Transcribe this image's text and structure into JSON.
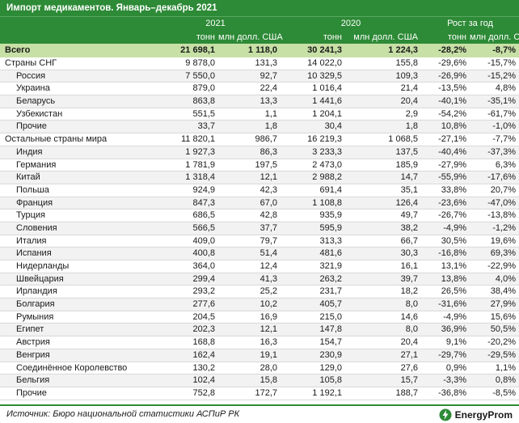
{
  "title": "Импорт медикаментов. Январь–декабрь 2021",
  "years": {
    "y2021": "2021",
    "y2020": "2020",
    "growth": "Рост за год"
  },
  "units": {
    "tons": "тонн",
    "usd": "млн долл. США"
  },
  "total": {
    "name": "Всего",
    "t21": "21 698,1",
    "u21": "1 118,0",
    "t20": "30 241,3",
    "u20": "1 224,3",
    "gt": "-28,2%",
    "gu": "-8,7%"
  },
  "rows": [
    {
      "name": "Страны СНГ",
      "sub": false,
      "t21": "9 878,0",
      "u21": "131,3",
      "t20": "14 022,0",
      "u20": "155,8",
      "gt": "-29,6%",
      "gu": "-15,7%"
    },
    {
      "name": "Россия",
      "sub": true,
      "t21": "7 550,0",
      "u21": "92,7",
      "t20": "10 329,5",
      "u20": "109,3",
      "gt": "-26,9%",
      "gu": "-15,2%"
    },
    {
      "name": "Украина",
      "sub": true,
      "t21": "879,0",
      "u21": "22,4",
      "t20": "1 016,4",
      "u20": "21,4",
      "gt": "-13,5%",
      "gu": "4,8%"
    },
    {
      "name": "Беларусь",
      "sub": true,
      "t21": "863,8",
      "u21": "13,3",
      "t20": "1 441,6",
      "u20": "20,4",
      "gt": "-40,1%",
      "gu": "-35,1%"
    },
    {
      "name": "Узбекистан",
      "sub": true,
      "t21": "551,5",
      "u21": "1,1",
      "t20": "1 204,1",
      "u20": "2,9",
      "gt": "-54,2%",
      "gu": "-61,7%"
    },
    {
      "name": "Прочие",
      "sub": true,
      "t21": "33,7",
      "u21": "1,8",
      "t20": "30,4",
      "u20": "1,8",
      "gt": "10,8%",
      "gu": "-1,0%"
    },
    {
      "name": "Остальные страны мира",
      "sub": false,
      "t21": "11 820,1",
      "u21": "986,7",
      "t20": "16 219,3",
      "u20": "1 068,5",
      "gt": "-27,1%",
      "gu": "-7,7%"
    },
    {
      "name": "Индия",
      "sub": true,
      "t21": "1 927,3",
      "u21": "86,3",
      "t20": "3 233,3",
      "u20": "137,5",
      "gt": "-40,4%",
      "gu": "-37,3%"
    },
    {
      "name": "Германия",
      "sub": true,
      "t21": "1 781,9",
      "u21": "197,5",
      "t20": "2 473,0",
      "u20": "185,9",
      "gt": "-27,9%",
      "gu": "6,3%"
    },
    {
      "name": "Китай",
      "sub": true,
      "t21": "1 318,4",
      "u21": "12,1",
      "t20": "2 988,2",
      "u20": "14,7",
      "gt": "-55,9%",
      "gu": "-17,6%"
    },
    {
      "name": "Польша",
      "sub": true,
      "t21": "924,9",
      "u21": "42,3",
      "t20": "691,4",
      "u20": "35,1",
      "gt": "33,8%",
      "gu": "20,7%"
    },
    {
      "name": "Франция",
      "sub": true,
      "t21": "847,3",
      "u21": "67,0",
      "t20": "1 108,8",
      "u20": "126,4",
      "gt": "-23,6%",
      "gu": "-47,0%"
    },
    {
      "name": "Турция",
      "sub": true,
      "t21": "686,5",
      "u21": "42,8",
      "t20": "935,9",
      "u20": "49,7",
      "gt": "-26,7%",
      "gu": "-13,8%"
    },
    {
      "name": "Словения",
      "sub": true,
      "t21": "566,5",
      "u21": "37,7",
      "t20": "595,9",
      "u20": "38,2",
      "gt": "-4,9%",
      "gu": "-1,2%"
    },
    {
      "name": "Италия",
      "sub": true,
      "t21": "409,0",
      "u21": "79,7",
      "t20": "313,3",
      "u20": "66,7",
      "gt": "30,5%",
      "gu": "19,6%"
    },
    {
      "name": "Испания",
      "sub": true,
      "t21": "400,8",
      "u21": "51,4",
      "t20": "481,6",
      "u20": "30,3",
      "gt": "-16,8%",
      "gu": "69,3%"
    },
    {
      "name": "Нидерланды",
      "sub": true,
      "t21": "364,0",
      "u21": "12,4",
      "t20": "321,9",
      "u20": "16,1",
      "gt": "13,1%",
      "gu": "-22,9%"
    },
    {
      "name": "Швейцария",
      "sub": true,
      "t21": "299,4",
      "u21": "41,3",
      "t20": "263,2",
      "u20": "39,7",
      "gt": "13,8%",
      "gu": "4,0%"
    },
    {
      "name": "Ирландия",
      "sub": true,
      "t21": "293,2",
      "u21": "25,2",
      "t20": "231,7",
      "u20": "18,2",
      "gt": "26,5%",
      "gu": "38,4%"
    },
    {
      "name": "Болгария",
      "sub": true,
      "t21": "277,6",
      "u21": "10,2",
      "t20": "405,7",
      "u20": "8,0",
      "gt": "-31,6%",
      "gu": "27,9%"
    },
    {
      "name": "Румыния",
      "sub": true,
      "t21": "204,5",
      "u21": "16,9",
      "t20": "215,0",
      "u20": "14,6",
      "gt": "-4,9%",
      "gu": "15,6%"
    },
    {
      "name": "Египет",
      "sub": true,
      "t21": "202,3",
      "u21": "12,1",
      "t20": "147,8",
      "u20": "8,0",
      "gt": "36,9%",
      "gu": "50,5%"
    },
    {
      "name": "Австрия",
      "sub": true,
      "t21": "168,8",
      "u21": "16,3",
      "t20": "154,7",
      "u20": "20,4",
      "gt": "9,1%",
      "gu": "-20,2%"
    },
    {
      "name": "Венгрия",
      "sub": true,
      "t21": "162,4",
      "u21": "19,1",
      "t20": "230,9",
      "u20": "27,1",
      "gt": "-29,7%",
      "gu": "-29,5%"
    },
    {
      "name": "Соединённое Королевство",
      "sub": true,
      "t21": "130,2",
      "u21": "28,0",
      "t20": "129,0",
      "u20": "27,6",
      "gt": "0,9%",
      "gu": "1,1%"
    },
    {
      "name": "Бельгия",
      "sub": true,
      "t21": "102,4",
      "u21": "15,8",
      "t20": "105,8",
      "u20": "15,7",
      "gt": "-3,3%",
      "gu": "0,8%"
    },
    {
      "name": "Прочие",
      "sub": true,
      "t21": "752,8",
      "u21": "172,7",
      "t20": "1 192,1",
      "u20": "188,7",
      "gt": "-36,8%",
      "gu": "-8,5%"
    }
  ],
  "footer": {
    "source": "Источник: Бюро национальной статистики АСПиР РК",
    "brand": "EnergyProm"
  },
  "colors": {
    "header": "#2d8a36",
    "total": "#c7e0a6"
  }
}
